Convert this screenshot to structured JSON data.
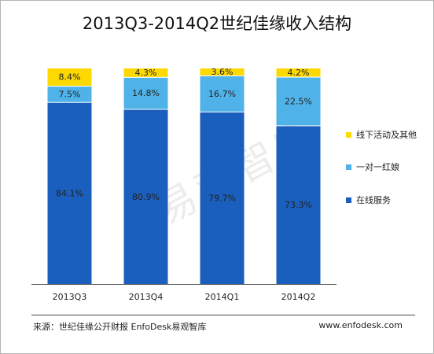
{
  "title": "2013Q3-2014Q2世纪佳缘收入结构",
  "footer": {
    "source": "来源：世纪佳缘公开财报 EnfoDesk易观智库",
    "site": "www.enfodesk.com"
  },
  "watermark": "易观智库",
  "chart_data": {
    "type": "bar",
    "stacked": true,
    "percent": true,
    "title": "2013Q3-2014Q2世纪佳缘收入结构",
    "xlabel": "",
    "ylabel": "",
    "ylim": [
      0,
      100
    ],
    "grid": false,
    "legend_position": "right",
    "categories": [
      "2013Q3",
      "2013Q4",
      "2014Q1",
      "2014Q2"
    ],
    "series": [
      {
        "name": "在线服务",
        "color": "#1a5fbd",
        "values": [
          84.1,
          80.9,
          79.7,
          73.3
        ],
        "labels": [
          "84.1%",
          "80.9%",
          "79.7%",
          "73.3%"
        ]
      },
      {
        "name": "一对一红娘",
        "color": "#4fb3ea",
        "values": [
          7.5,
          14.8,
          16.7,
          22.5
        ],
        "labels": [
          "7.5%",
          "14.8%",
          "16.7%",
          "22.5%"
        ]
      },
      {
        "name": "线下活动及其他",
        "color": "#fdd900",
        "values": [
          8.4,
          4.3,
          3.6,
          4.2
        ],
        "labels": [
          "8.4%",
          "4.3%",
          "3.6%",
          "4.2%"
        ]
      }
    ],
    "legend_order": [
      "线下活动及其他",
      "一对一红娘",
      "在线服务"
    ]
  }
}
